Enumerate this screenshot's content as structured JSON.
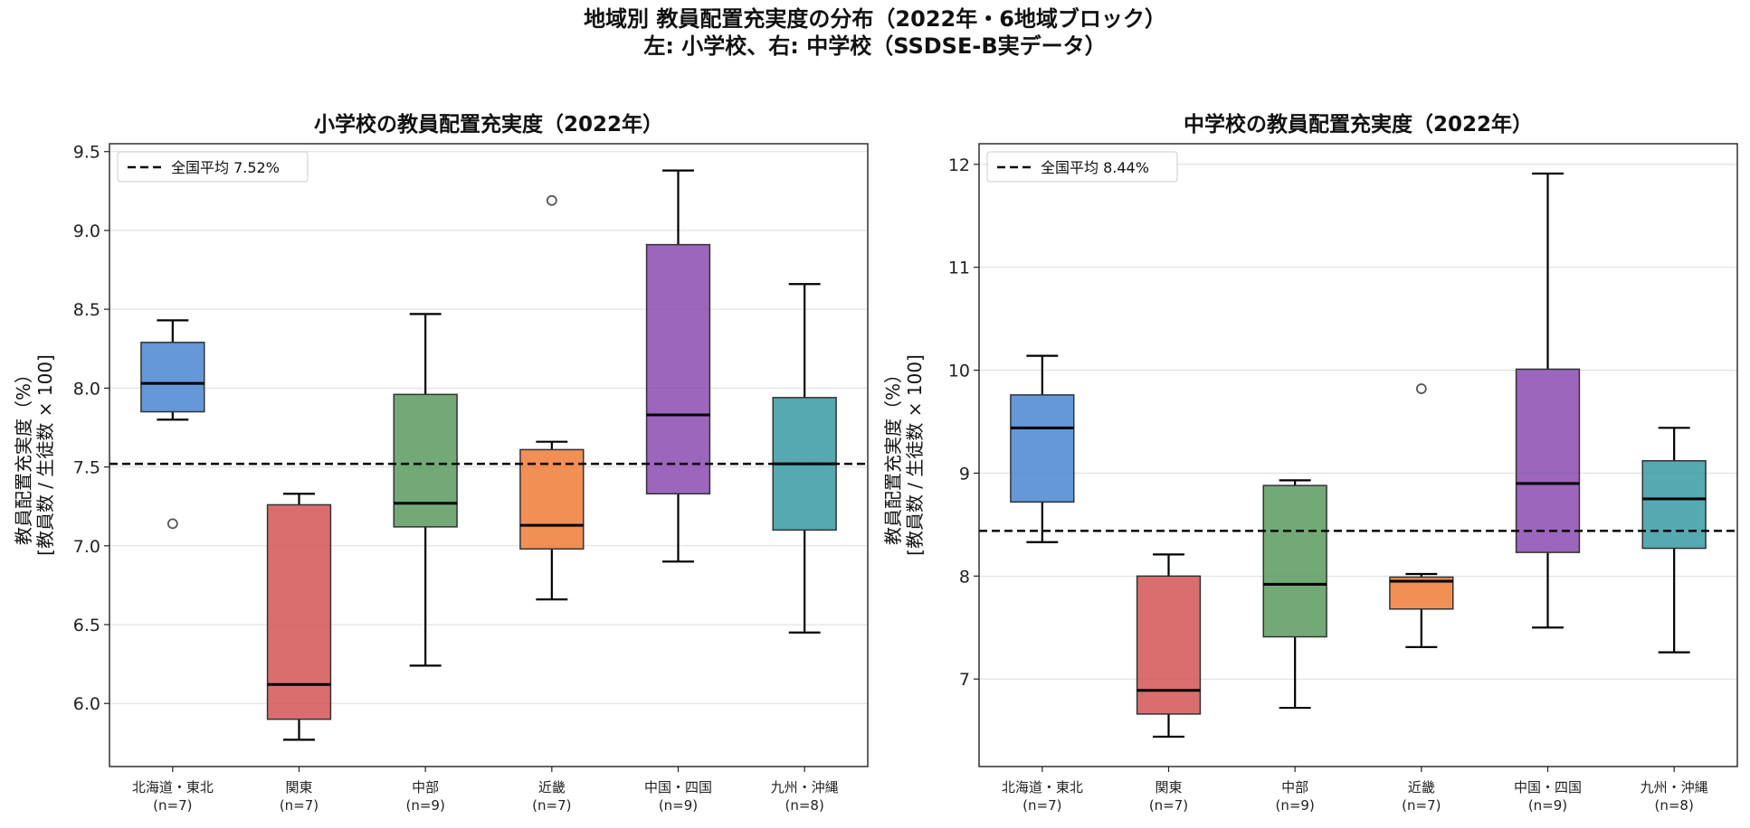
{
  "figure": {
    "title_line1": "地域別 教員配置充実度の分布（2022年・6地域ブロック）",
    "title_line2": "左: 小学校、右: 中学校（SSDSE-B実データ）"
  },
  "colors": {
    "北海道・東北": "#4a86d0",
    "関東": "#d45555",
    "中部": "#5a9a5f",
    "近畿": "#ee7b36",
    "中国・四国": "#8a4bb0",
    "九州・沖縄": "#3a9aa3",
    "frame": "#222222",
    "grid": "#dddddd"
  },
  "chart_data": [
    {
      "type": "box",
      "title": "小学校の教員配置充実度（2022年）",
      "ylabel_line1": "教員配置充実度（%）",
      "ylabel_line2": "[教員数 / 生徒数 × 100]",
      "ylim": [
        5.6,
        9.55
      ],
      "yticks": [
        "6.0",
        "6.5",
        "7.0",
        "7.5",
        "8.0",
        "8.5",
        "9.0",
        "9.5"
      ],
      "grid": "horizontal",
      "legend_position": "top-left",
      "reference_line": {
        "label": "全国平均 7.52%",
        "value": 7.52,
        "style": "dashed"
      },
      "categories": [
        "北海道・東北",
        "関東",
        "中部",
        "近畿",
        "中国・四国",
        "九州・沖縄"
      ],
      "counts": [
        "(n=7)",
        "(n=7)",
        "(n=9)",
        "(n=7)",
        "(n=9)",
        "(n=8)"
      ],
      "boxes": [
        {
          "whisker_low": 7.8,
          "q1": 7.85,
          "median": 8.03,
          "q3": 8.29,
          "whisker_high": 8.43,
          "outliers": [
            7.14
          ]
        },
        {
          "whisker_low": 5.77,
          "q1": 5.9,
          "median": 6.12,
          "q3": 7.26,
          "whisker_high": 7.33,
          "outliers": []
        },
        {
          "whisker_low": 6.24,
          "q1": 7.12,
          "median": 7.27,
          "q3": 7.96,
          "whisker_high": 8.47,
          "outliers": []
        },
        {
          "whisker_low": 6.66,
          "q1": 6.98,
          "median": 7.13,
          "q3": 7.61,
          "whisker_high": 7.66,
          "outliers": [
            9.19
          ]
        },
        {
          "whisker_low": 6.9,
          "q1": 7.33,
          "median": 7.83,
          "q3": 8.91,
          "whisker_high": 9.38,
          "outliers": []
        },
        {
          "whisker_low": 6.45,
          "q1": 7.1,
          "median": 7.52,
          "q3": 7.94,
          "whisker_high": 8.66,
          "outliers": []
        }
      ]
    },
    {
      "type": "box",
      "title": "中学校の教員配置充実度（2022年）",
      "ylabel_line1": "教員配置充実度（%）",
      "ylabel_line2": "[教員数 / 生徒数 × 100]",
      "ylim": [
        6.15,
        12.2
      ],
      "yticks": [
        "7",
        "8",
        "9",
        "10",
        "11",
        "12"
      ],
      "grid": "horizontal",
      "legend_position": "top-left",
      "reference_line": {
        "label": "全国平均 8.44%",
        "value": 8.44,
        "style": "dashed"
      },
      "categories": [
        "北海道・東北",
        "関東",
        "中部",
        "近畿",
        "中国・四国",
        "九州・沖縄"
      ],
      "counts": [
        "(n=7)",
        "(n=7)",
        "(n=9)",
        "(n=7)",
        "(n=9)",
        "(n=8)"
      ],
      "boxes": [
        {
          "whisker_low": 8.33,
          "q1": 8.72,
          "median": 9.44,
          "q3": 9.76,
          "whisker_high": 10.14,
          "outliers": []
        },
        {
          "whisker_low": 6.44,
          "q1": 6.66,
          "median": 6.89,
          "q3": 8.0,
          "whisker_high": 8.21,
          "outliers": []
        },
        {
          "whisker_low": 6.72,
          "q1": 7.41,
          "median": 7.92,
          "q3": 8.88,
          "whisker_high": 8.93,
          "outliers": []
        },
        {
          "whisker_low": 7.31,
          "q1": 7.68,
          "median": 7.95,
          "q3": 7.99,
          "whisker_high": 8.02,
          "outliers": [
            9.82
          ]
        },
        {
          "whisker_low": 7.5,
          "q1": 8.23,
          "median": 8.9,
          "q3": 10.01,
          "whisker_high": 11.91,
          "outliers": []
        },
        {
          "whisker_low": 7.26,
          "q1": 8.27,
          "median": 8.75,
          "q3": 9.12,
          "whisker_high": 9.44,
          "outliers": []
        }
      ]
    }
  ]
}
